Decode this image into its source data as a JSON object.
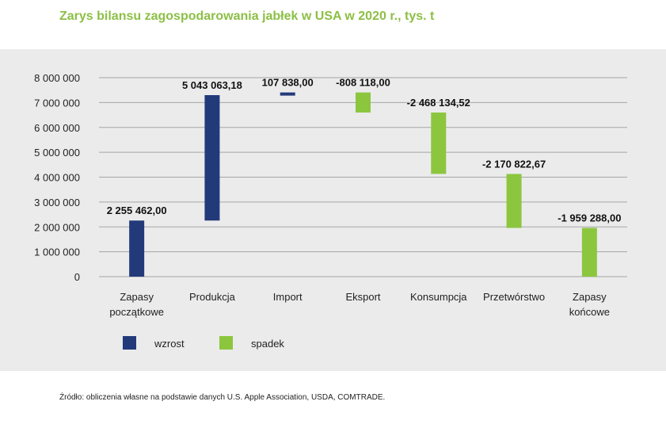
{
  "title": "Zarys bilansu zagospodarowania jabłek w USA w 2020 r., tys. t",
  "source": "Źródło: obliczenia własne na podstawie danych U.S. Apple Association, USDA, COMTRADE.",
  "chart_data": {
    "type": "bar",
    "subtype": "waterfall",
    "categories": [
      [
        "Zapasy",
        "początkowe"
      ],
      [
        "Produkcja"
      ],
      [
        "Import"
      ],
      [
        "Eksport"
      ],
      [
        "Konsumpcja"
      ],
      [
        "Przetwórstwo"
      ],
      [
        "Zapasy",
        "końcowe"
      ]
    ],
    "bars": [
      {
        "start": 0,
        "end": 2255462.0,
        "kind": "wzrost",
        "label": "2 255 462,00"
      },
      {
        "start": 2255462.0,
        "end": 7298525.18,
        "kind": "wzrost",
        "label": "5 043 063,18"
      },
      {
        "start": 7298525.18,
        "end": 7406363.18,
        "kind": "wzrost",
        "label": "107 838,00"
      },
      {
        "start": 7406363.18,
        "end": 6598245.18,
        "kind": "spadek",
        "label": "-808 118,00"
      },
      {
        "start": 6598245.18,
        "end": 4130110.66,
        "kind": "spadek",
        "label": "-2 468 134,52"
      },
      {
        "start": 4130110.66,
        "end": 1959287.99,
        "kind": "spadek",
        "label": "-2 170 822,67"
      },
      {
        "start": 1959288.0,
        "end": 0,
        "kind": "spadek",
        "label": "-1 959 288,00"
      }
    ],
    "ylim": [
      0,
      8000000
    ],
    "yticks": [
      0,
      1000000,
      2000000,
      3000000,
      4000000,
      5000000,
      6000000,
      7000000,
      8000000
    ],
    "ytick_labels": [
      "0",
      "1 000 000",
      "2 000 000",
      "3 000 000",
      "4 000 000",
      "5 000 000",
      "6 000 000",
      "7 000 000",
      "8 000 000"
    ],
    "grid": true,
    "legend": {
      "placement": "bottom-left",
      "entries": [
        {
          "name": "wzrost",
          "color": "#233a7a"
        },
        {
          "name": "spadek",
          "color": "#8cc63f"
        }
      ]
    },
    "colors": {
      "wzrost": "#233a7a",
      "spadek": "#8cc63f",
      "grid": "#a6a6a6"
    }
  }
}
